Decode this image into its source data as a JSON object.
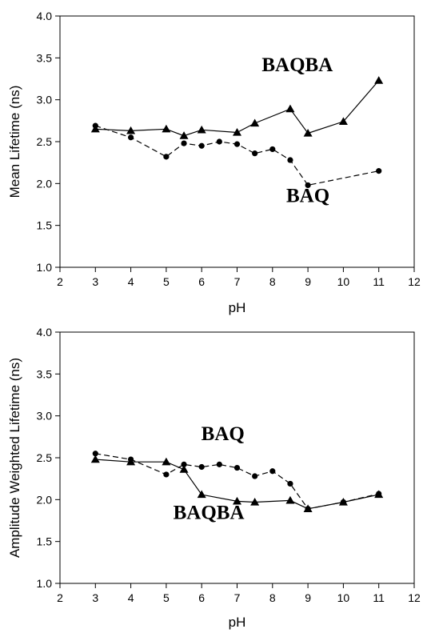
{
  "chart_data": [
    {
      "type": "line",
      "xlabel": "pH",
      "ylabel": "Mean Lifetime (ns)",
      "xlim": [
        2,
        12
      ],
      "ylim": [
        1.0,
        4.0
      ],
      "xticks": [
        "2",
        "3",
        "4",
        "5",
        "6",
        "7",
        "8",
        "9",
        "10",
        "11",
        "12"
      ],
      "yticks": [
        "1.0",
        "1.5",
        "2.0",
        "2.5",
        "3.0",
        "3.5",
        "4.0"
      ],
      "grid": false,
      "series": [
        {
          "name": "BAQBA",
          "marker": "triangle",
          "line": "solid",
          "x": [
            3,
            4,
            5,
            5.5,
            6,
            7,
            7.5,
            8.5,
            9,
            10,
            11
          ],
          "y": [
            2.65,
            2.63,
            2.65,
            2.57,
            2.64,
            2.61,
            2.72,
            2.89,
            2.6,
            2.74,
            3.23
          ]
        },
        {
          "name": "BAQ",
          "marker": "circle",
          "line": "dashed",
          "x": [
            3,
            4,
            5,
            5.5,
            6,
            6.5,
            7,
            7.5,
            8,
            8.5,
            9,
            11
          ],
          "y": [
            2.69,
            2.55,
            2.32,
            2.48,
            2.45,
            2.5,
            2.47,
            2.36,
            2.41,
            2.28,
            1.98,
            2.15
          ]
        }
      ],
      "annotations": [
        {
          "text": "BAQBA",
          "x": 8.7,
          "y": 3.34
        },
        {
          "text": "BAQ",
          "x": 9.0,
          "y": 1.78
        }
      ]
    },
    {
      "type": "line",
      "xlabel": "pH",
      "ylabel": "Amplitude Weighted Lifetime (ns)",
      "xlim": [
        2,
        12
      ],
      "ylim": [
        1.0,
        4.0
      ],
      "xticks": [
        "2",
        "3",
        "4",
        "5",
        "6",
        "7",
        "8",
        "9",
        "10",
        "11",
        "12"
      ],
      "yticks": [
        "1.0",
        "1.5",
        "2.0",
        "2.5",
        "3.0",
        "3.5",
        "4.0"
      ],
      "grid": false,
      "series": [
        {
          "name": "BAQBA",
          "marker": "triangle",
          "line": "solid",
          "x": [
            3,
            4,
            5,
            5.5,
            6,
            7,
            7.5,
            8.5,
            9,
            10,
            11
          ],
          "y": [
            2.48,
            2.45,
            2.45,
            2.36,
            2.06,
            1.98,
            1.97,
            1.99,
            1.89,
            1.97,
            2.06
          ]
        },
        {
          "name": "BAQ",
          "marker": "circle",
          "line": "dashed",
          "x": [
            3,
            4,
            5,
            5.5,
            6,
            6.5,
            7,
            7.5,
            8,
            8.5,
            9,
            10,
            11
          ],
          "y": [
            2.55,
            2.48,
            2.3,
            2.42,
            2.39,
            2.42,
            2.38,
            2.28,
            2.34,
            2.19,
            1.89,
            1.97,
            2.07
          ]
        }
      ],
      "annotations": [
        {
          "text": "BAQ",
          "x": 6.6,
          "y": 2.71
        },
        {
          "text": "BAQBA",
          "x": 6.2,
          "y": 1.77
        }
      ]
    }
  ]
}
